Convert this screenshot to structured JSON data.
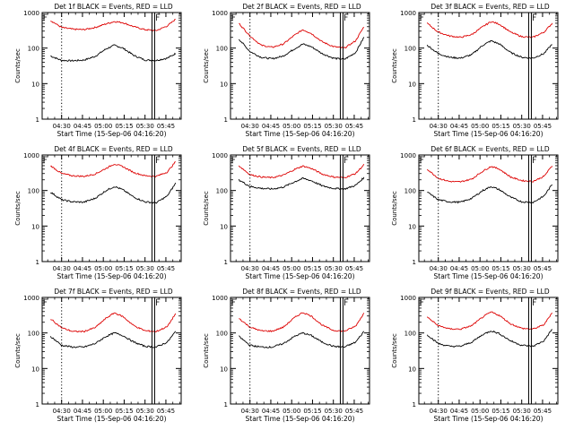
{
  "colors": {
    "events": "#000000",
    "lld": "#dd0000",
    "axis": "#000000",
    "background": "#ffffff"
  },
  "chart_data": [
    {
      "type": "line",
      "title": "Det 1f BLACK = Events, RED = LLD",
      "xlabel": "Start Time (15-Sep-06 04:16:20)",
      "ylabel": "Counts/sec",
      "yscale": "log",
      "ylim": [
        1,
        1000
      ],
      "yticks": [
        "1",
        "10",
        "100",
        "1000"
      ],
      "xticks": [
        "04:30",
        "04:45",
        "05:00",
        "05:15",
        "05:30",
        "05:45"
      ],
      "x": [
        "04:22",
        "04:30",
        "04:38",
        "04:46",
        "04:54",
        "05:02",
        "05:08",
        "05:14",
        "05:22",
        "05:30",
        "05:38",
        "05:46",
        "05:52"
      ],
      "series": [
        {
          "name": "",
          "color": "#000000",
          "values": [
            60,
            45,
            44,
            46,
            58,
            95,
            120,
            100,
            62,
            46,
            45,
            52,
            70
          ]
        },
        {
          "name": "",
          "color": "#dd0000",
          "values": [
            600,
            380,
            340,
            330,
            380,
            480,
            560,
            520,
            400,
            330,
            310,
            420,
            650
          ]
        }
      ],
      "markers": {
        "dotted_x": "04:30",
        "solid_x": "05:35"
      },
      "grid": false
    },
    {
      "type": "line",
      "title": "Det 2f BLACK = Events, RED = LLD",
      "xlabel": "Start Time (15-Sep-06 04:16:20)",
      "ylabel": "Counts/sec",
      "yscale": "log",
      "ylim": [
        1,
        1000
      ],
      "yticks": [
        "1",
        "10",
        "100",
        "1000"
      ],
      "xticks": [
        "04:30",
        "04:45",
        "05:00",
        "05:15",
        "05:30",
        "05:45"
      ],
      "x": [
        "04:22",
        "04:30",
        "04:38",
        "04:46",
        "04:54",
        "05:02",
        "05:08",
        "05:14",
        "05:22",
        "05:30",
        "05:38",
        "05:46",
        "05:52"
      ],
      "series": [
        {
          "name": "",
          "color": "#000000",
          "values": [
            180,
            80,
            55,
            50,
            60,
            95,
            130,
            110,
            70,
            52,
            48,
            75,
            200
          ]
        },
        {
          "name": "",
          "color": "#dd0000",
          "values": [
            500,
            220,
            120,
            105,
            130,
            230,
            330,
            260,
            150,
            110,
            100,
            160,
            400
          ]
        }
      ],
      "markers": {
        "dotted_x": "04:30",
        "solid_x": "05:35"
      },
      "grid": false
    },
    {
      "type": "line",
      "title": "Det 3f BLACK = Events, RED = LLD",
      "xlabel": "Start Time (15-Sep-06 04:16:20)",
      "ylabel": "Counts/sec",
      "yscale": "log",
      "ylim": [
        1,
        1000
      ],
      "yticks": [
        "1",
        "10",
        "100",
        "1000"
      ],
      "xticks": [
        "04:30",
        "04:45",
        "05:00",
        "05:15",
        "05:30",
        "05:45"
      ],
      "x": [
        "04:22",
        "04:30",
        "04:38",
        "04:46",
        "04:54",
        "05:02",
        "05:08",
        "05:14",
        "05:22",
        "05:30",
        "05:38",
        "05:46",
        "05:52"
      ],
      "series": [
        {
          "name": "",
          "color": "#000000",
          "values": [
            120,
            70,
            55,
            52,
            65,
            120,
            160,
            130,
            75,
            55,
            52,
            70,
            130
          ]
        },
        {
          "name": "",
          "color": "#dd0000",
          "values": [
            500,
            280,
            220,
            200,
            240,
            400,
            560,
            470,
            280,
            210,
            200,
            280,
            500
          ]
        }
      ],
      "markers": {
        "dotted_x": "04:30",
        "solid_x": "05:35"
      },
      "grid": false
    },
    {
      "type": "line",
      "title": "Det 4f BLACK = Events, RED = LLD",
      "xlabel": "Start Time (15-Sep-06 04:16:20)",
      "ylabel": "Counts/sec",
      "yscale": "log",
      "ylim": [
        1,
        1000
      ],
      "yticks": [
        "1",
        "10",
        "100",
        "1000"
      ],
      "xticks": [
        "04:30",
        "04:45",
        "05:00",
        "05:15",
        "05:30",
        "05:45"
      ],
      "x": [
        "04:22",
        "04:30",
        "04:38",
        "04:46",
        "04:54",
        "05:02",
        "05:08",
        "05:14",
        "05:22",
        "05:30",
        "05:38",
        "05:46",
        "05:52"
      ],
      "series": [
        {
          "name": "",
          "color": "#000000",
          "values": [
            90,
            55,
            48,
            47,
            60,
            100,
            130,
            105,
            65,
            48,
            45,
            70,
            160
          ]
        },
        {
          "name": "",
          "color": "#dd0000",
          "values": [
            500,
            300,
            260,
            250,
            290,
            420,
            560,
            470,
            320,
            260,
            250,
            330,
            650
          ]
        }
      ],
      "markers": {
        "dotted_x": "04:30",
        "solid_x": "05:35"
      },
      "grid": false
    },
    {
      "type": "line",
      "title": "Det 5f BLACK = Events, RED = LLD",
      "xlabel": "Start Time (15-Sep-06 04:16:20)",
      "ylabel": "Counts/sec",
      "yscale": "log",
      "ylim": [
        1,
        1000
      ],
      "yticks": [
        "1",
        "10",
        "100",
        "1000"
      ],
      "xticks": [
        "04:30",
        "04:45",
        "05:00",
        "05:15",
        "05:30",
        "05:45"
      ],
      "x": [
        "04:22",
        "04:30",
        "04:38",
        "04:46",
        "04:54",
        "05:02",
        "05:08",
        "05:14",
        "05:22",
        "05:30",
        "05:38",
        "05:46",
        "05:52"
      ],
      "series": [
        {
          "name": "",
          "color": "#000000",
          "values": [
            200,
            130,
            115,
            110,
            125,
            175,
            220,
            190,
            135,
            115,
            110,
            140,
            230
          ]
        },
        {
          "name": "",
          "color": "#dd0000",
          "values": [
            500,
            280,
            240,
            230,
            270,
            390,
            490,
            420,
            290,
            240,
            230,
            300,
            530
          ]
        }
      ],
      "markers": {
        "dotted_x": "04:30",
        "solid_x": "05:35"
      },
      "grid": false
    },
    {
      "type": "line",
      "title": "Det 6f BLACK = Events, RED = LLD",
      "xlabel": "Start Time (15-Sep-06 04:16:20)",
      "ylabel": "Counts/sec",
      "yscale": "log",
      "ylim": [
        1,
        1000
      ],
      "yticks": [
        "1",
        "10",
        "100",
        "1000"
      ],
      "xticks": [
        "04:30",
        "04:45",
        "05:00",
        "05:15",
        "05:30",
        "05:45"
      ],
      "x": [
        "04:22",
        "04:30",
        "04:38",
        "04:46",
        "04:54",
        "05:02",
        "05:08",
        "05:14",
        "05:22",
        "05:30",
        "05:38",
        "05:46",
        "05:52"
      ],
      "series": [
        {
          "name": "",
          "color": "#000000",
          "values": [
            90,
            55,
            48,
            47,
            60,
            100,
            130,
            105,
            65,
            48,
            46,
            70,
            150
          ]
        },
        {
          "name": "",
          "color": "#dd0000",
          "values": [
            400,
            220,
            180,
            175,
            210,
            350,
            480,
            400,
            240,
            190,
            180,
            250,
            500
          ]
        }
      ],
      "markers": {
        "dotted_x": "04:30",
        "solid_x": "05:35"
      },
      "grid": false
    },
    {
      "type": "line",
      "title": "Det 7f BLACK = Events, RED = LLD",
      "xlabel": "Start Time (15-Sep-06 04:16:20)",
      "ylabel": "Counts/sec",
      "yscale": "log",
      "ylim": [
        1,
        1000
      ],
      "yticks": [
        "1",
        "10",
        "100",
        "1000"
      ],
      "xticks": [
        "04:30",
        "04:45",
        "05:00",
        "05:15",
        "05:30",
        "05:45"
      ],
      "x": [
        "04:22",
        "04:30",
        "04:38",
        "04:46",
        "04:54",
        "05:02",
        "05:08",
        "05:14",
        "05:22",
        "05:30",
        "05:38",
        "05:46",
        "05:52"
      ],
      "series": [
        {
          "name": "",
          "color": "#000000",
          "values": [
            80,
            45,
            40,
            40,
            50,
            80,
            100,
            85,
            55,
            42,
            40,
            55,
            110
          ]
        },
        {
          "name": "",
          "color": "#dd0000",
          "values": [
            250,
            140,
            110,
            110,
            140,
            260,
            370,
            290,
            160,
            115,
            110,
            150,
            350
          ]
        }
      ],
      "markers": {
        "dotted_x": "04:30",
        "solid_x": "05:35"
      },
      "grid": false
    },
    {
      "type": "line",
      "title": "Det 8f BLACK = Events, RED = LLD",
      "xlabel": "Start Time (15-Sep-06 04:16:20)",
      "ylabel": "Counts/sec",
      "yscale": "log",
      "ylim": [
        1,
        1000
      ],
      "yticks": [
        "1",
        "10",
        "100",
        "1000"
      ],
      "xticks": [
        "04:30",
        "04:45",
        "05:00",
        "05:15",
        "05:30",
        "05:45"
      ],
      "x": [
        "04:22",
        "04:30",
        "04:38",
        "04:46",
        "04:54",
        "05:02",
        "05:08",
        "05:14",
        "05:22",
        "05:30",
        "05:38",
        "05:46",
        "05:52"
      ],
      "series": [
        {
          "name": "",
          "color": "#000000",
          "values": [
            80,
            45,
            40,
            40,
            50,
            80,
            100,
            85,
            55,
            42,
            40,
            55,
            110
          ]
        },
        {
          "name": "",
          "color": "#dd0000",
          "values": [
            260,
            145,
            115,
            112,
            145,
            270,
            380,
            300,
            165,
            118,
            112,
            155,
            360
          ]
        }
      ],
      "markers": {
        "dotted_x": "04:30",
        "solid_x": "05:35"
      },
      "grid": false
    },
    {
      "type": "line",
      "title": "Det 9f BLACK = Events, RED = LLD",
      "xlabel": "Start Time (15-Sep-06 04:16:20)",
      "ylabel": "Counts/sec",
      "yscale": "log",
      "ylim": [
        1,
        1000
      ],
      "yticks": [
        "1",
        "10",
        "100",
        "1000"
      ],
      "xticks": [
        "04:30",
        "04:45",
        "05:00",
        "05:15",
        "05:30",
        "05:45"
      ],
      "x": [
        "04:22",
        "04:30",
        "04:38",
        "04:46",
        "04:54",
        "05:02",
        "05:08",
        "05:14",
        "05:22",
        "05:30",
        "05:38",
        "05:46",
        "05:52"
      ],
      "series": [
        {
          "name": "",
          "color": "#000000",
          "values": [
            90,
            50,
            42,
            42,
            55,
            90,
            115,
            95,
            60,
            45,
            42,
            60,
            130
          ]
        },
        {
          "name": "",
          "color": "#dd0000",
          "values": [
            280,
            160,
            130,
            128,
            160,
            280,
            390,
            310,
            180,
            135,
            128,
            170,
            380
          ]
        }
      ],
      "markers": {
        "dotted_x": "04:30",
        "solid_x": "05:35"
      },
      "grid": false
    }
  ]
}
